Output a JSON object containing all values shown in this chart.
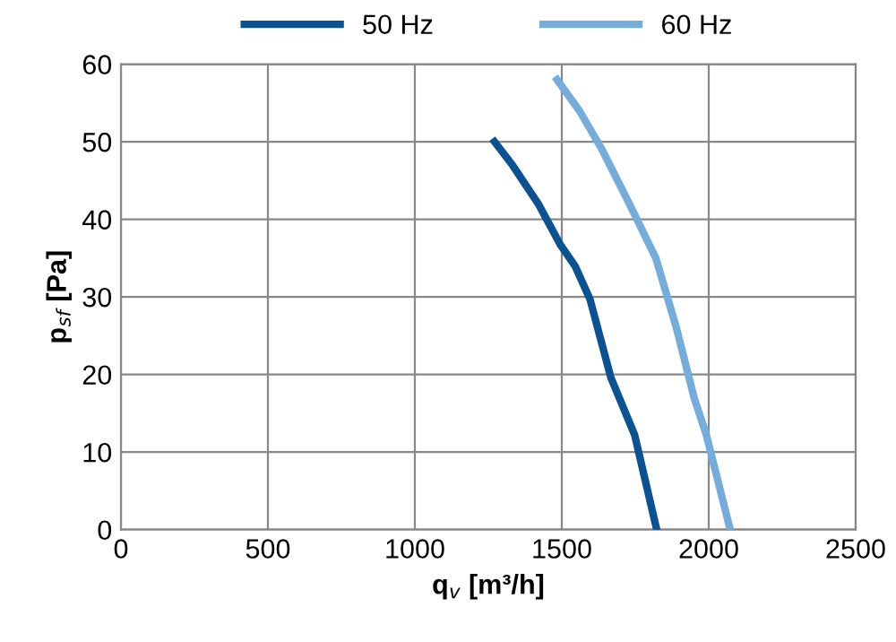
{
  "chart_data": {
    "type": "line",
    "xlabel": "q$_{v}$ [m³/h]",
    "ylabel": "p$_{sf}$ [Pa]",
    "xlim": [
      0,
      2500
    ],
    "xticks": [
      0,
      500,
      1000,
      1500,
      2000,
      2500
    ],
    "ylim": [
      0,
      60
    ],
    "yticks": [
      0,
      10,
      20,
      30,
      40,
      50,
      60
    ],
    "grid": true,
    "legend": "top",
    "marker": "none",
    "line_style": "solid",
    "series": [
      {
        "name": "50 Hz",
        "color": "#0a5291",
        "x": [
          1271,
          1332,
          1420,
          1494,
          1545,
          1596,
          1667,
          1748,
          1823
        ],
        "values": [
          50,
          47,
          42,
          36.8,
          34,
          29.7,
          19.6,
          12.2,
          0
        ]
      },
      {
        "name": "60 Hz",
        "color": "#74acdb",
        "x": [
          1484,
          1560,
          1637,
          1730,
          1820,
          1890,
          1951,
          1992,
          2073
        ],
        "values": [
          58,
          54,
          49,
          42,
          35,
          26,
          16.9,
          12.2,
          0
        ]
      }
    ]
  }
}
